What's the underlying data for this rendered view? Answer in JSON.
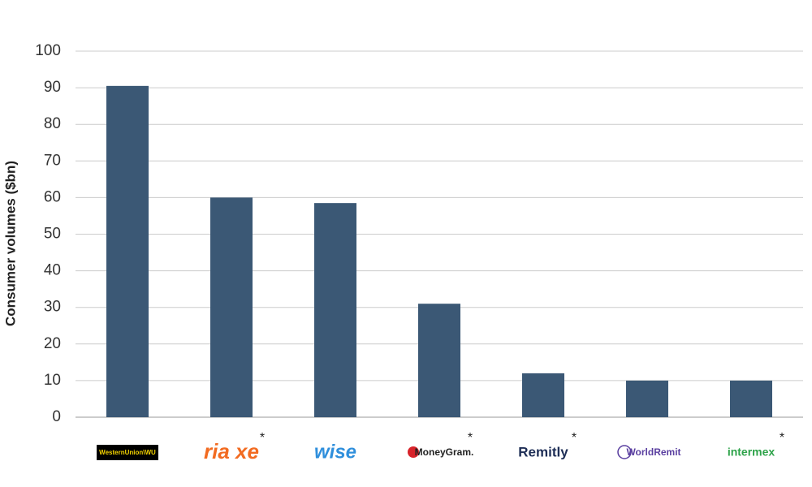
{
  "chart_data": {
    "type": "bar",
    "y_label": "Consumer volumes ($bn)",
    "categories": [
      "WesternUnion\\WU",
      "ria xe",
      "wise",
      "MoneyGram.",
      "Remitly",
      "WorldRemit",
      "intermex"
    ],
    "values": [
      90.5,
      60,
      58.5,
      31,
      12,
      10,
      10
    ],
    "color": "#3b5875",
    "ylim": [
      0,
      100
    ],
    "yticks": [
      0,
      10,
      20,
      30,
      40,
      50,
      60,
      70,
      80,
      90,
      100
    ],
    "grid": true,
    "marked": [
      false,
      true,
      false,
      true,
      true,
      false,
      true
    ],
    "mark_symbol": "*"
  }
}
